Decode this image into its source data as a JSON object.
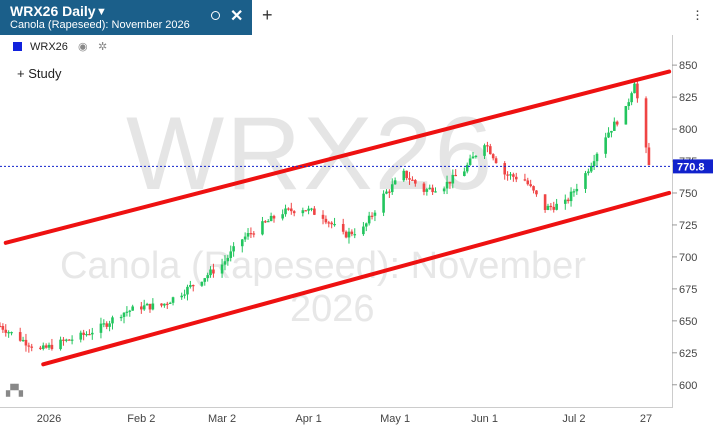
{
  "tab": {
    "title": "WRX26 Daily",
    "subtitle": "Canola (Rapeseed): November 2026",
    "caret_icon": "chevron-down-icon",
    "settings_icon": "circle-icon",
    "close_icon": "close-icon"
  },
  "new_tab_label": "+",
  "menu_icon": "kebab-icon",
  "legend": {
    "symbol": "WRX26",
    "color": "#1122dd",
    "eye_icon": "eye-icon",
    "gear_icon": "gear-icon"
  },
  "study_label": "+ Study",
  "watermark": {
    "symbol": "WRX26",
    "name": "Canola (Rapeseed): November",
    "year": "2026"
  },
  "colors": {
    "up": "#22c55e",
    "down": "#ef4444",
    "channel": "#ee1111",
    "last_price_line": "#1122cc",
    "last_price_badge": "#1122cc"
  },
  "chart_data": {
    "type": "candlestick",
    "symbol": "WRX26",
    "interval": "Daily",
    "ylim": [
      596,
      858
    ],
    "y_ticks": [
      600,
      625,
      650,
      675,
      700,
      725,
      750,
      775,
      800,
      825,
      850
    ],
    "x_range": [
      "2025-12-15",
      "2026-08-05"
    ],
    "x_ticks": [
      {
        "label": "2026",
        "date": "2026-01-01"
      },
      {
        "label": "Feb 2",
        "date": "2026-02-02"
      },
      {
        "label": "Mar 2",
        "date": "2026-03-02"
      },
      {
        "label": "Apr 1",
        "date": "2026-04-01"
      },
      {
        "label": "May 1",
        "date": "2026-05-01"
      },
      {
        "label": "Jun 1",
        "date": "2026-06-01"
      },
      {
        "label": "Jul 2",
        "date": "2026-07-02"
      },
      {
        "label": "27",
        "date": "2026-07-27"
      }
    ],
    "last_price": 770.8,
    "channel_lines": [
      {
        "start": [
          "2025-12-17",
          711
        ],
        "end": [
          "2026-08-04",
          845
        ]
      },
      {
        "start": [
          "2025-12-30",
          616
        ],
        "end": [
          "2026-08-04",
          750
        ]
      }
    ],
    "close_path": [
      [
        "2025-12-15",
        646
      ],
      [
        "2025-12-22",
        636
      ],
      [
        "2025-12-29",
        627
      ],
      [
        "2026-01-05",
        633
      ],
      [
        "2026-01-12",
        638
      ],
      [
        "2026-01-19",
        645
      ],
      [
        "2026-01-26",
        656
      ],
      [
        "2026-02-02",
        661
      ],
      [
        "2026-02-09",
        662
      ],
      [
        "2026-02-16",
        672
      ],
      [
        "2026-02-23",
        683
      ],
      [
        "2026-03-02",
        694
      ],
      [
        "2026-03-09",
        714
      ],
      [
        "2026-03-16",
        725
      ],
      [
        "2026-03-23",
        735
      ],
      [
        "2026-03-30",
        738
      ],
      [
        "2026-04-06",
        732
      ],
      [
        "2026-04-13",
        717
      ],
      [
        "2026-04-20",
        722
      ],
      [
        "2026-04-27",
        748
      ],
      [
        "2026-05-04",
        765
      ],
      [
        "2026-05-11",
        752
      ],
      [
        "2026-05-18",
        756
      ],
      [
        "2026-05-25",
        768
      ],
      [
        "2026-06-01",
        790
      ],
      [
        "2026-06-08",
        765
      ],
      [
        "2026-06-15",
        760
      ],
      [
        "2026-06-22",
        738
      ],
      [
        "2026-06-29",
        742
      ],
      [
        "2026-07-06",
        765
      ],
      [
        "2026-07-13",
        795
      ],
      [
        "2026-07-20",
        815
      ],
      [
        "2026-07-23",
        838
      ],
      [
        "2026-07-26",
        795
      ],
      [
        "2026-07-28",
        770.8
      ]
    ]
  }
}
